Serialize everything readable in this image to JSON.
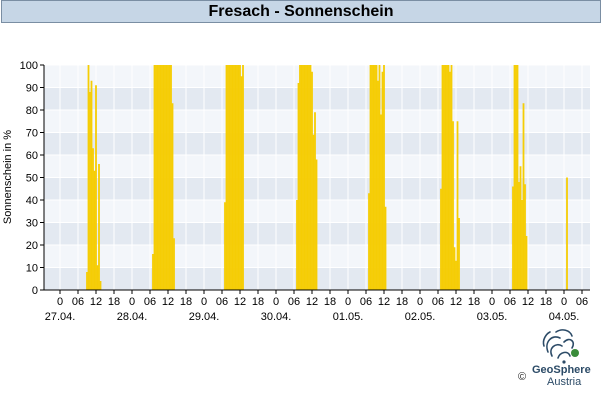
{
  "title": "Fresach - Sonnenschein",
  "logo": {
    "brand": "GeoSphere",
    "country": "Austria",
    "copyright": "©"
  },
  "colors": {
    "bar": "#f5cd05",
    "band_dark": "#e3e9f1",
    "band_light": "#f3f6fa",
    "grid": "#ffffff",
    "title_bg": "#c6d6e6"
  },
  "chart_data": {
    "type": "bar",
    "ylabel": "Sonnenschein in %",
    "xlabel": "",
    "ylim": [
      0,
      100
    ],
    "yticks": [
      0,
      10,
      20,
      30,
      40,
      50,
      60,
      70,
      80,
      90,
      100
    ],
    "x_hour_ticks": [
      "0",
      "06",
      "12",
      "18",
      "0",
      "06",
      "12",
      "18",
      "0",
      "06",
      "12",
      "18",
      "0",
      "06",
      "12",
      "18",
      "0",
      "06",
      "12",
      "18",
      "0",
      "06",
      "12",
      "18",
      "0",
      "06",
      "12",
      "18",
      "0",
      "06"
    ],
    "x_date_labels": [
      "27.04.",
      "28.04.",
      "29.04.",
      "30.04.",
      "01.05.",
      "02.05.",
      "03.05.",
      "04.05."
    ],
    "time_unit": "hour",
    "series": [
      {
        "values": [
          [
            9,
            8
          ],
          [
            9.5,
            100
          ],
          [
            10,
            88
          ],
          [
            10.5,
            93
          ],
          [
            11,
            63
          ],
          [
            11.5,
            53
          ],
          [
            12,
            91
          ],
          [
            12.5,
            11
          ],
          [
            13,
            56
          ],
          [
            13.5,
            4
          ],
          [
            31,
            16
          ],
          [
            31.5,
            100
          ],
          [
            32,
            100
          ],
          [
            32.5,
            100
          ],
          [
            33,
            100
          ],
          [
            33.5,
            100
          ],
          [
            34,
            100
          ],
          [
            34.5,
            100
          ],
          [
            35,
            100
          ],
          [
            35.5,
            100
          ],
          [
            36,
            100
          ],
          [
            36.5,
            100
          ],
          [
            37,
            100
          ],
          [
            37.5,
            83
          ],
          [
            38,
            23
          ],
          [
            55,
            39
          ],
          [
            55.5,
            100
          ],
          [
            56,
            100
          ],
          [
            56.5,
            100
          ],
          [
            57,
            100
          ],
          [
            57.5,
            100
          ],
          [
            58,
            100
          ],
          [
            58.5,
            100
          ],
          [
            59,
            100
          ],
          [
            59.5,
            100
          ],
          [
            60,
            100
          ],
          [
            60.5,
            95
          ],
          [
            61,
            100
          ],
          [
            79,
            40
          ],
          [
            79.5,
            92
          ],
          [
            80,
            100
          ],
          [
            80.5,
            100
          ],
          [
            81,
            100
          ],
          [
            81.5,
            100
          ],
          [
            82,
            100
          ],
          [
            82.5,
            100
          ],
          [
            83,
            100
          ],
          [
            83.5,
            100
          ],
          [
            84,
            97
          ],
          [
            84.5,
            69
          ],
          [
            85,
            79
          ],
          [
            85.5,
            58
          ],
          [
            103,
            43
          ],
          [
            103.5,
            100
          ],
          [
            104,
            100
          ],
          [
            104.5,
            100
          ],
          [
            105,
            100
          ],
          [
            105.5,
            100
          ],
          [
            106,
            93
          ],
          [
            106.5,
            100
          ],
          [
            107,
            78
          ],
          [
            107.5,
            97
          ],
          [
            108,
            100
          ],
          [
            108.5,
            37
          ],
          [
            127,
            45
          ],
          [
            127.5,
            100
          ],
          [
            128,
            100
          ],
          [
            128.5,
            100
          ],
          [
            129,
            100
          ],
          [
            129.5,
            100
          ],
          [
            130,
            97
          ],
          [
            130.5,
            100
          ],
          [
            131,
            75
          ],
          [
            131.5,
            19
          ],
          [
            132,
            13
          ],
          [
            132.5,
            75
          ],
          [
            133,
            32
          ],
          [
            151,
            46
          ],
          [
            151.5,
            100
          ],
          [
            152,
            100
          ],
          [
            152.5,
            100
          ],
          [
            153,
            48
          ],
          [
            153.5,
            55
          ],
          [
            154,
            40
          ],
          [
            154.5,
            83
          ],
          [
            155,
            47
          ],
          [
            155.5,
            24
          ],
          [
            169,
            50
          ]
        ]
      }
    ]
  }
}
